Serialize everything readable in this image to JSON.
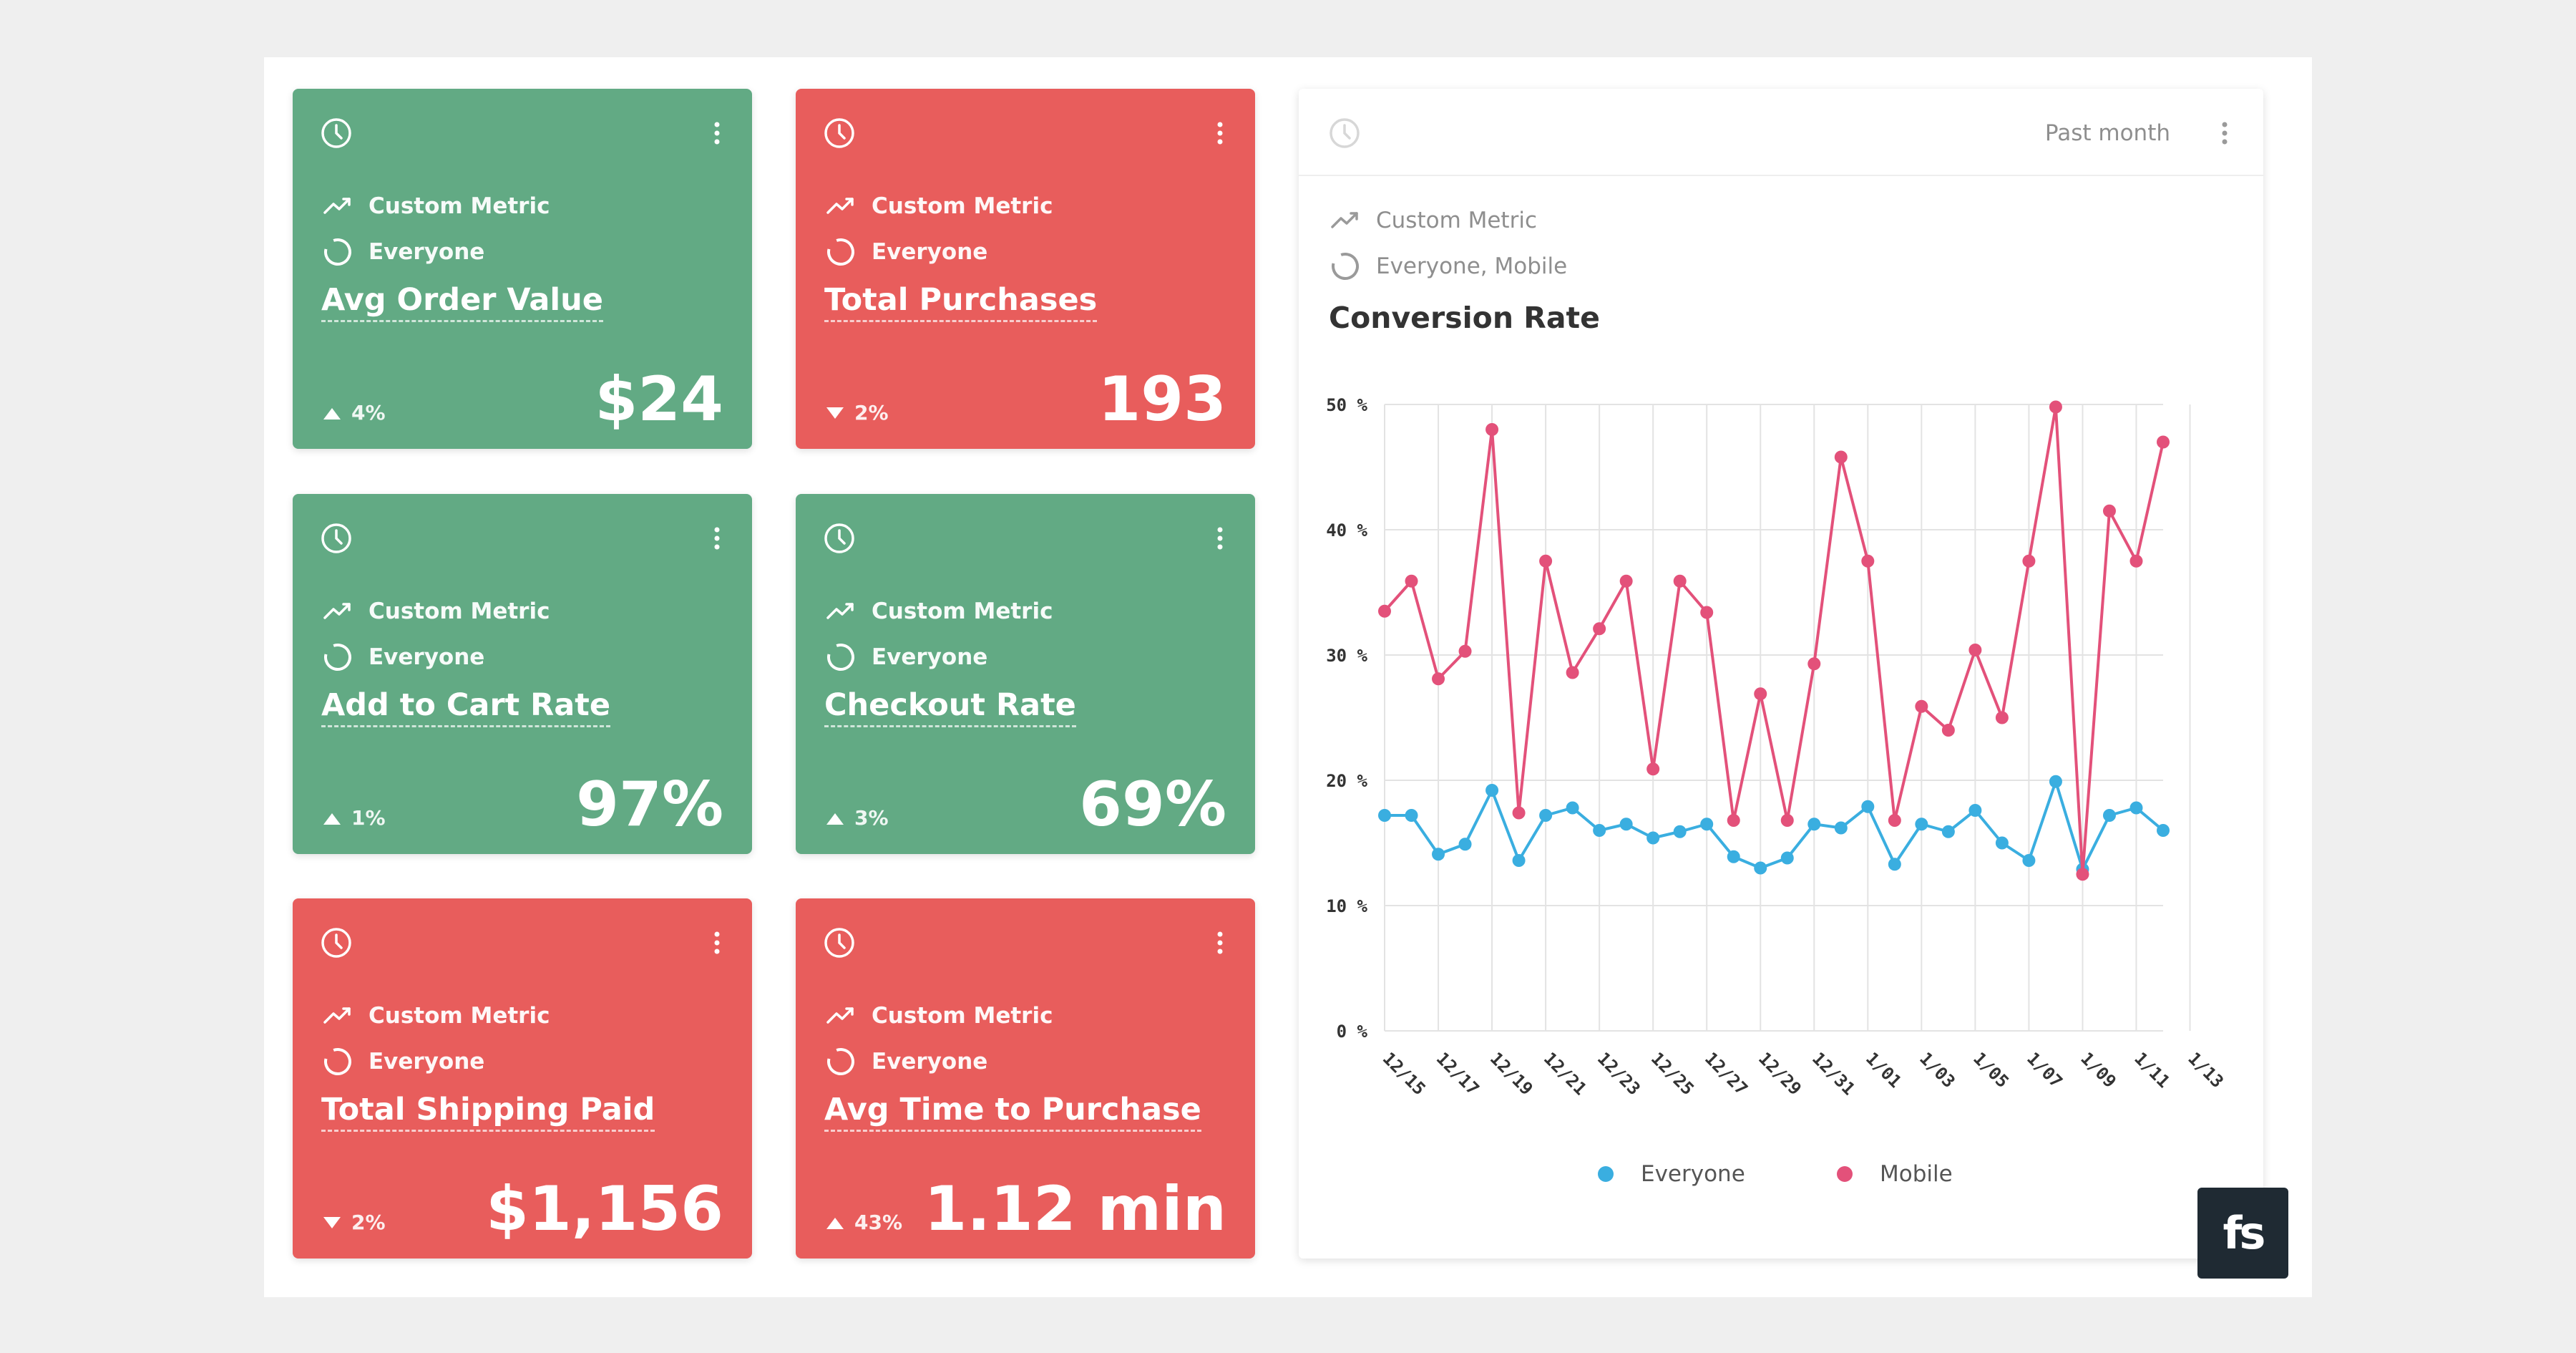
{
  "cards": [
    {
      "metric_label": "Custom Metric",
      "segment_label": "Everyone",
      "title": "Avg Order Value",
      "change": "4%",
      "direction": "up",
      "value": "$24",
      "color": "#62aa84"
    },
    {
      "metric_label": "Custom Metric",
      "segment_label": "Everyone",
      "title": "Total Purchases",
      "change": "2%",
      "direction": "down",
      "value": "193",
      "color": "#e85d5c"
    },
    {
      "metric_label": "Custom Metric",
      "segment_label": "Everyone",
      "title": "Add to Cart Rate",
      "change": "1%",
      "direction": "up",
      "value": "97%",
      "color": "#62aa84"
    },
    {
      "metric_label": "Custom Metric",
      "segment_label": "Everyone",
      "title": "Checkout Rate",
      "change": "3%",
      "direction": "up",
      "value": "69%",
      "color": "#62aa84"
    },
    {
      "metric_label": "Custom Metric",
      "segment_label": "Everyone",
      "title": "Total Shipping Paid",
      "change": "2%",
      "direction": "down",
      "value": "$1,156",
      "color": "#e85d5c"
    },
    {
      "metric_label": "Custom Metric",
      "segment_label": "Everyone",
      "title": "Avg Time to Purchase",
      "change": "43%",
      "direction": "up",
      "value": "1.12 min",
      "color": "#e85d5c"
    }
  ],
  "chart_card": {
    "range_label": "Past month",
    "metric_label": "Custom Metric",
    "segment_label": "Everyone, Mobile"
  },
  "logo": {
    "text": "fs"
  },
  "chart_data": {
    "type": "line",
    "title": "Conversion Rate",
    "xlabel": "",
    "ylabel": "",
    "ylim": [
      0,
      50
    ],
    "y_ticks": [
      0,
      10,
      20,
      30,
      40,
      50
    ],
    "y_tick_labels": [
      "0 %",
      "10 %",
      "20 %",
      "30 %",
      "40 %",
      "50 %"
    ],
    "x_tick_labels": [
      "12/15",
      "12/17",
      "12/19",
      "12/21",
      "12/23",
      "12/25",
      "12/27",
      "12/29",
      "12/31",
      "1/01",
      "1/03",
      "1/05",
      "1/07",
      "1/09",
      "1/11",
      "1/13"
    ],
    "grid": true,
    "legend_position": "bottom",
    "series": [
      {
        "name": "Everyone",
        "color": "#3aaee0",
        "values": [
          17.2,
          17.2,
          14.1,
          14.9,
          19.2,
          13.6,
          17.2,
          17.8,
          16.0,
          16.5,
          15.4,
          15.9,
          16.5,
          13.9,
          13.0,
          13.8,
          16.5,
          16.2,
          17.9,
          13.3,
          16.5,
          15.9,
          17.6,
          15.0,
          13.6,
          19.9,
          12.9,
          17.2,
          17.8,
          16.0
        ]
      },
      {
        "name": "Mobile",
        "color": "#e3517a",
        "values": [
          33.5,
          35.9,
          28.1,
          30.3,
          48.0,
          17.4,
          37.5,
          28.6,
          32.1,
          35.9,
          20.9,
          35.9,
          33.4,
          16.8,
          26.9,
          16.8,
          29.3,
          45.8,
          37.5,
          16.8,
          25.9,
          24.0,
          30.4,
          25.0,
          37.5,
          49.8,
          12.5,
          41.5,
          37.5,
          47.0
        ]
      }
    ]
  }
}
